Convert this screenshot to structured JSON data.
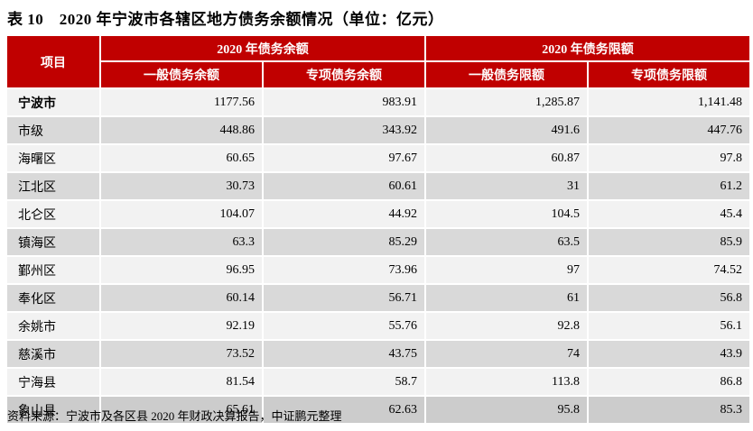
{
  "title": "表 10　2020 年宁波市各辖区地方债务余额情况（单位：亿元）",
  "colors": {
    "header_red": "#C00000",
    "row_light": "#F2F2F2",
    "row_dark": "#D9D9D9",
    "row_last": "#CCCCCC"
  },
  "table": {
    "corner_header": "项目",
    "group_headers": [
      "2020 年债务余额",
      "2020 年债务限额"
    ],
    "sub_headers": [
      "一般债务余额",
      "专项债务余额",
      "一般债务限额",
      "专项债务限额"
    ],
    "rows": [
      {
        "label": "宁波市",
        "bold": true,
        "values": [
          "1177.56",
          "983.91",
          "1,285.87",
          "1,141.48"
        ]
      },
      {
        "label": "市级",
        "bold": false,
        "values": [
          "448.86",
          "343.92",
          "491.6",
          "447.76"
        ]
      },
      {
        "label": "海曙区",
        "bold": false,
        "values": [
          "60.65",
          "97.67",
          "60.87",
          "97.8"
        ]
      },
      {
        "label": "江北区",
        "bold": false,
        "values": [
          "30.73",
          "60.61",
          "31",
          "61.2"
        ]
      },
      {
        "label": "北仑区",
        "bold": false,
        "values": [
          "104.07",
          "44.92",
          "104.5",
          "45.4"
        ]
      },
      {
        "label": "镇海区",
        "bold": false,
        "values": [
          "63.3",
          "85.29",
          "63.5",
          "85.9"
        ]
      },
      {
        "label": "鄞州区",
        "bold": false,
        "values": [
          "96.95",
          "73.96",
          "97",
          "74.52"
        ]
      },
      {
        "label": "奉化区",
        "bold": false,
        "values": [
          "60.14",
          "56.71",
          "61",
          "56.8"
        ]
      },
      {
        "label": "余姚市",
        "bold": false,
        "values": [
          "92.19",
          "55.76",
          "92.8",
          "56.1"
        ]
      },
      {
        "label": "慈溪市",
        "bold": false,
        "values": [
          "73.52",
          "43.75",
          "74",
          "43.9"
        ]
      },
      {
        "label": "宁海县",
        "bold": false,
        "values": [
          "81.54",
          "58.7",
          "113.8",
          "86.8"
        ]
      },
      {
        "label": "象山县",
        "bold": false,
        "values": [
          "65.61",
          "62.63",
          "95.8",
          "85.3"
        ]
      }
    ]
  },
  "source_note": "资料来源：宁波市及各区县 2020 年财政决算报告，中证鹏元整理"
}
